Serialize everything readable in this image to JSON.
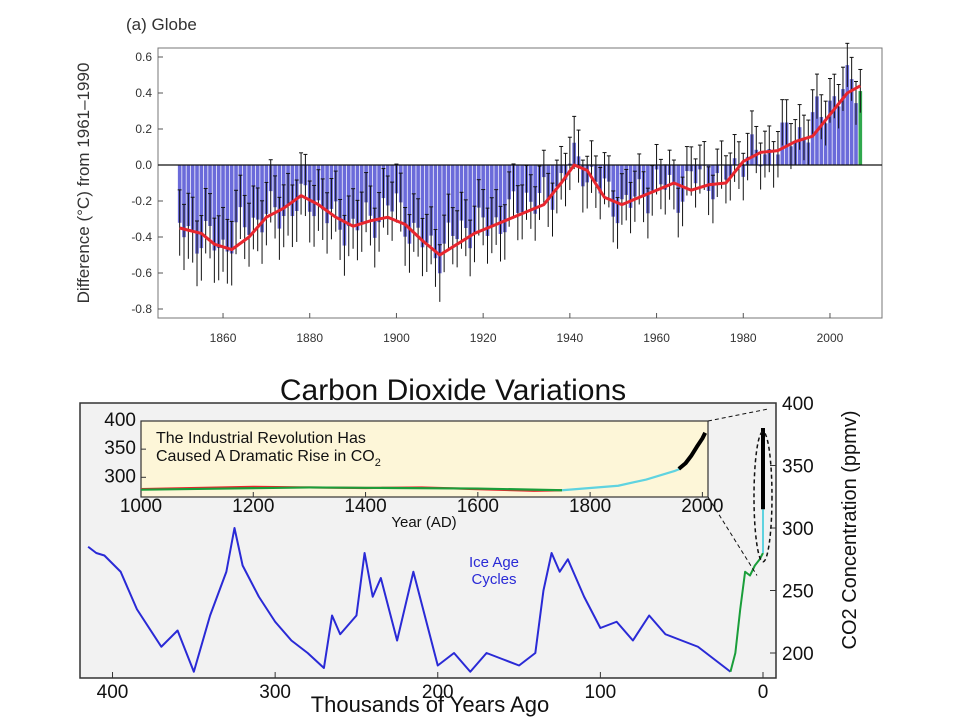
{
  "chart_data": [
    {
      "type": "bar",
      "panel_label": "(a) Globe",
      "ylabel": "Difference (°C) from 1961–1990",
      "xlim": [
        1845,
        2012
      ],
      "ylim": [
        -0.85,
        0.65
      ],
      "x_ticks": [
        1860,
        1880,
        1900,
        1920,
        1940,
        1960,
        1980,
        2000
      ],
      "y_ticks": [
        "0.6",
        "0.4",
        "0.2",
        "0.0",
        "-0.2",
        "-0.4",
        "-0.6",
        "-0.8"
      ],
      "y_tick_values": [
        0.6,
        0.4,
        0.2,
        0.0,
        -0.2,
        -0.4,
        -0.6,
        -0.8
      ],
      "bars_annual_anomaly": {
        "x": [
          1850,
          1855,
          1860,
          1865,
          1870,
          1875,
          1880,
          1885,
          1890,
          1895,
          1900,
          1905,
          1910,
          1915,
          1920,
          1925,
          1930,
          1935,
          1940,
          1945,
          1950,
          1955,
          1960,
          1965,
          1970,
          1975,
          1980,
          1985,
          1990,
          1995,
          2000,
          2005
        ],
        "y": [
          -0.35,
          -0.4,
          -0.45,
          -0.33,
          -0.28,
          -0.25,
          -0.18,
          -0.3,
          -0.35,
          -0.28,
          -0.22,
          -0.42,
          -0.48,
          -0.35,
          -0.35,
          -0.3,
          -0.18,
          -0.2,
          0.02,
          -0.05,
          -0.22,
          -0.2,
          -0.1,
          -0.15,
          -0.05,
          -0.1,
          0.05,
          0.05,
          0.15,
          0.2,
          0.35,
          0.45
        ]
      },
      "smoothed_line": {
        "x": [
          1850,
          1855,
          1858,
          1862,
          1866,
          1870,
          1874,
          1878,
          1882,
          1886,
          1890,
          1894,
          1898,
          1902,
          1906,
          1910,
          1914,
          1918,
          1922,
          1926,
          1930,
          1934,
          1938,
          1941,
          1944,
          1948,
          1952,
          1956,
          1960,
          1964,
          1968,
          1972,
          1976,
          1980,
          1984,
          1988,
          1992,
          1996,
          2000,
          2004,
          2007
        ],
        "y": [
          -0.35,
          -0.38,
          -0.44,
          -0.47,
          -0.4,
          -0.29,
          -0.24,
          -0.17,
          -0.22,
          -0.29,
          -0.34,
          -0.31,
          -0.29,
          -0.33,
          -0.42,
          -0.5,
          -0.44,
          -0.38,
          -0.34,
          -0.3,
          -0.26,
          -0.22,
          -0.1,
          0.0,
          -0.03,
          -0.18,
          -0.22,
          -0.18,
          -0.14,
          -0.1,
          -0.14,
          -0.11,
          -0.1,
          0.02,
          0.07,
          0.08,
          0.13,
          0.16,
          0.28,
          0.4,
          0.44
        ]
      },
      "colors": {
        "bars": "#5b5bd6",
        "line": "#e8262e",
        "last_bar": "#1a9e3a"
      }
    },
    {
      "type": "line",
      "title": "Carbon Dioxide Variations",
      "xlabel": "Thousands of Years Ago",
      "ylabel": "CO2 Concentration (ppmv)",
      "xlim": [
        420,
        -8
      ],
      "ylim": [
        180,
        400
      ],
      "x_ticks": [
        "400",
        "300",
        "200",
        "100",
        "0"
      ],
      "x_tick_values": [
        400,
        300,
        200,
        100,
        0
      ],
      "y_ticks": [
        "400",
        "350",
        "300",
        "250",
        "200"
      ],
      "y_tick_values": [
        400,
        350,
        300,
        250,
        200
      ],
      "annotation": {
        "line1": "Ice Age",
        "line2": "Cycles"
      },
      "series": [
        {
          "color": "#2a2ad6",
          "x": [
            415,
            410,
            405,
            395,
            385,
            370,
            360,
            350,
            340,
            330,
            325,
            320,
            310,
            300,
            290,
            280,
            270,
            265,
            260,
            250,
            245,
            240,
            235,
            225,
            215,
            200,
            190,
            180,
            170,
            160,
            150,
            140,
            135,
            130,
            125,
            120,
            110,
            100,
            90,
            80,
            70,
            60,
            50,
            40,
            30,
            20
          ],
          "y": [
            285,
            280,
            278,
            265,
            235,
            205,
            218,
            185,
            230,
            265,
            300,
            270,
            245,
            225,
            210,
            200,
            188,
            230,
            215,
            230,
            280,
            245,
            260,
            210,
            265,
            190,
            200,
            185,
            200,
            195,
            190,
            200,
            250,
            280,
            265,
            275,
            245,
            220,
            225,
            210,
            230,
            215,
            210,
            205,
            195,
            185
          ]
        },
        {
          "color": "#1a9e3a",
          "x": [
            20,
            17,
            14,
            11,
            8,
            5,
            2,
            0
          ],
          "y": [
            185,
            200,
            235,
            265,
            262,
            270,
            275,
            280
          ]
        },
        {
          "color": "#5fd3e0",
          "x": [
            0,
            0
          ],
          "y": [
            280,
            315
          ]
        },
        {
          "color": "#000000",
          "x": [
            0,
            0
          ],
          "y": [
            315,
            380
          ]
        }
      ],
      "inset": {
        "title_line1": "The Industrial Revolution Has",
        "title_line2": "Caused A Dramatic Rise in CO",
        "title_subscript": "2",
        "xlabel": "Year (AD)",
        "xlim": [
          1000,
          2010
        ],
        "ylim": [
          265,
          400
        ],
        "x_ticks": [
          "1000",
          "1200",
          "1400",
          "1600",
          "1800",
          "2000"
        ],
        "x_tick_values": [
          1000,
          1200,
          1400,
          1600,
          1800,
          2000
        ],
        "y_ticks": [
          "400",
          "350",
          "300"
        ],
        "y_tick_values": [
          400,
          350,
          300
        ],
        "series": [
          {
            "color": "#e8262e",
            "x": [
              1000,
              1100,
              1200,
              1300,
              1400,
              1500,
              1600,
              1700,
              1750
            ],
            "y": [
              279,
              281,
              283,
              282,
              281,
              282,
              279,
              276,
              277
            ]
          },
          {
            "color": "#1a9e3a",
            "x": [
              1000,
              1150,
              1300,
              1450,
              1600,
              1750
            ],
            "y": [
              278,
              280,
              282,
              281,
              280,
              277
            ]
          },
          {
            "color": "#5fd3e0",
            "x": [
              1750,
              1800,
              1850,
              1900,
              1950,
              1960
            ],
            "y": [
              277,
              281,
              285,
              296,
              311,
              315
            ]
          },
          {
            "color": "#000000",
            "x": [
              1958,
              1970,
              1980,
              1990,
              2000,
              2005
            ],
            "y": [
              315,
              325,
              338,
              354,
              369,
              379
            ]
          }
        ]
      }
    }
  ]
}
